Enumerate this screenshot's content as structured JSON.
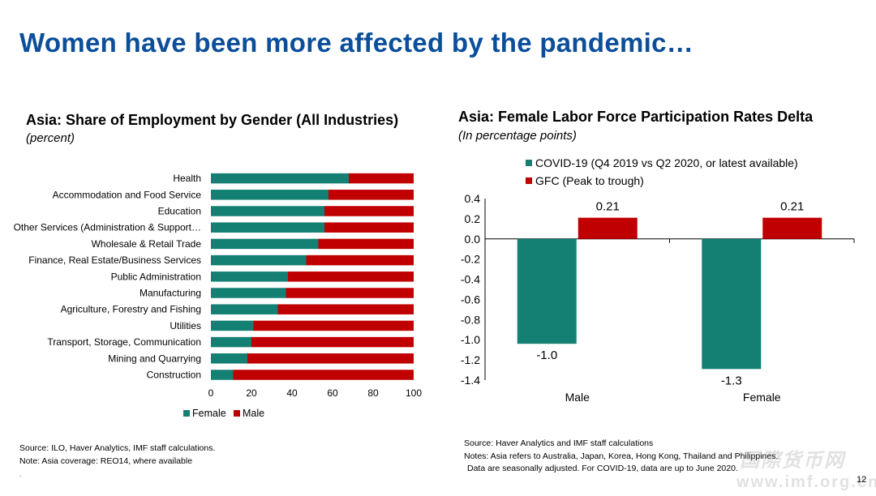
{
  "slide": {
    "title": "Women have been more affected by the pandemic…",
    "page_number": "12",
    "watermark": "国際货币网",
    "watermark_url": "www.imf.org.cn"
  },
  "left_chart": {
    "title": "Asia: Share of Employment by Gender (All Industries)",
    "subtitle": "(percent)",
    "source": "Source: ILO, Haver Analytics, IMF staff calculations.",
    "note": "Note: Asia coverage: REO14, where available",
    "footer_mark": "."
  },
  "right_chart": {
    "title": "Asia: Female Labor Force Participation Rates Delta",
    "subtitle": "(In percentage points)",
    "source": "Source: Haver Analytics and IMF staff calculations",
    "note_line1": "Notes: Asia refers to Australia, Japan, Korea, Hong Kong, Thailand and Philippines.",
    "note_line2": "Data are seasonally adjusted. For COVID-19, data are up to June 2020."
  },
  "colors": {
    "female": "#138073",
    "male": "#c00000",
    "covid": "#138073",
    "gfc": "#c00000",
    "title": "#0b4e9a"
  },
  "chart_data": [
    {
      "type": "bar",
      "orientation": "horizontal",
      "stacked": true,
      "categories": [
        "Health",
        "Accommodation and Food Service",
        "Education",
        "Other Services (Administration & Support…",
        "Wholesale & Retail Trade",
        "Finance, Real Estate/Business Services",
        "Public Administration",
        "Manufacturing",
        "Agriculture, Forestry and Fishing",
        "Utilities",
        "Transport, Storage, Communication",
        "Mining and Quarrying",
        "Construction"
      ],
      "series": [
        {
          "name": "Female",
          "values": [
            68,
            58,
            56,
            56,
            53,
            47,
            38,
            37,
            33,
            21,
            20,
            18,
            11
          ]
        },
        {
          "name": "Male",
          "values": [
            32,
            42,
            44,
            44,
            47,
            53,
            62,
            63,
            67,
            79,
            80,
            82,
            89
          ]
        }
      ],
      "xlim": [
        0,
        100
      ],
      "xticks": [
        0,
        20,
        40,
        60,
        80,
        100
      ],
      "legend": "bottom"
    },
    {
      "type": "bar",
      "categories": [
        "Male",
        "Female"
      ],
      "series": [
        {
          "name": "COVID-19 (Q4 2019 vs Q2 2020, or latest available)",
          "values": [
            -1.04,
            -1.29
          ],
          "labels": [
            "-1.0",
            "-1.3"
          ]
        },
        {
          "name": "GFC (Peak to trough)",
          "values": [
            0.21,
            0.21
          ],
          "labels": [
            "0.21",
            "0.21"
          ]
        }
      ],
      "ylim": [
        -1.4,
        0.4
      ],
      "yticks": [
        "0.4",
        "0.2",
        "0.0",
        "-0.2",
        "-0.4",
        "-0.6",
        "-0.8",
        "-1.0",
        "-1.2",
        "-1.4"
      ],
      "legend": "top-left"
    }
  ]
}
